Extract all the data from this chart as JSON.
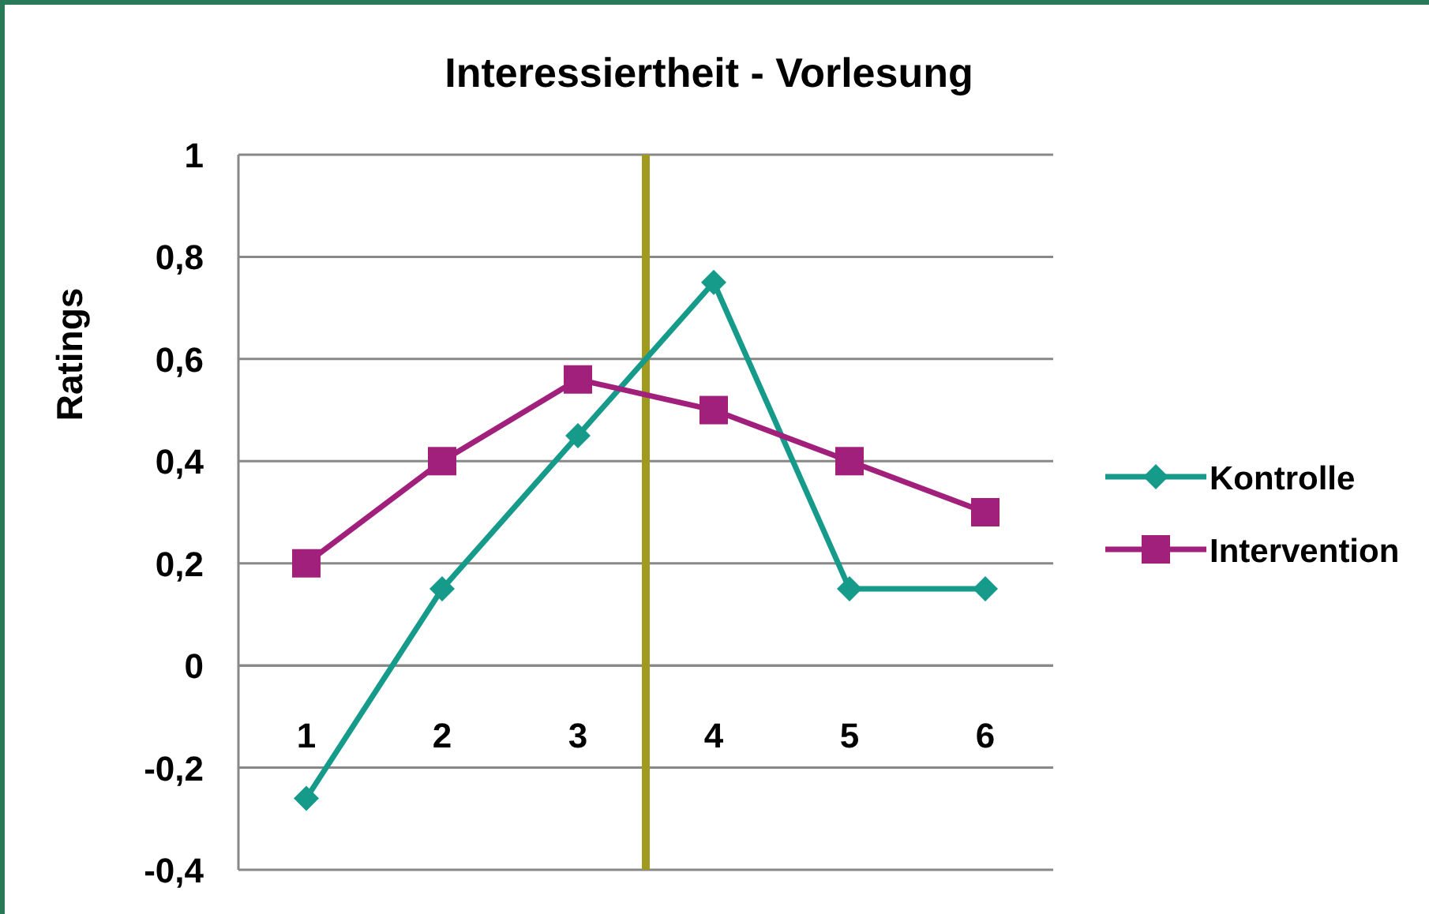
{
  "chart_data": {
    "type": "line",
    "title": "Interessiertheit - Vorlesung",
    "ylabel": "Ratings",
    "x": [
      1,
      2,
      3,
      4,
      5,
      6
    ],
    "xlim": [
      0.5,
      6.5
    ],
    "xticks": [
      1,
      2,
      3,
      4,
      5,
      6
    ],
    "ylim": [
      -0.4,
      1
    ],
    "yticks": [
      {
        "value": -0.4,
        "label": "-0,4"
      },
      {
        "value": -0.2,
        "label": "-0,2"
      },
      0,
      {
        "value": 0.2,
        "label": "0,2"
      },
      {
        "value": 0.4,
        "label": "0,4"
      },
      {
        "value": 0.6,
        "label": "0,6"
      },
      {
        "value": 0.8,
        "label": "0,8"
      },
      1
    ],
    "grid": "y",
    "legend": "right",
    "ref_lines": [
      {
        "axis": "x",
        "value": 3.5,
        "color": "#a09a1e"
      }
    ],
    "series": [
      {
        "name": "Kontrolle",
        "color": "#169a8a",
        "marker": "diamond",
        "values": [
          -0.26,
          0.15,
          0.45,
          0.75,
          0.15,
          0.15
        ]
      },
      {
        "name": "Intervention",
        "color": "#a0207c",
        "marker": "square",
        "values": [
          0.2,
          0.4,
          0.56,
          0.5,
          0.4,
          0.3
        ]
      }
    ]
  }
}
